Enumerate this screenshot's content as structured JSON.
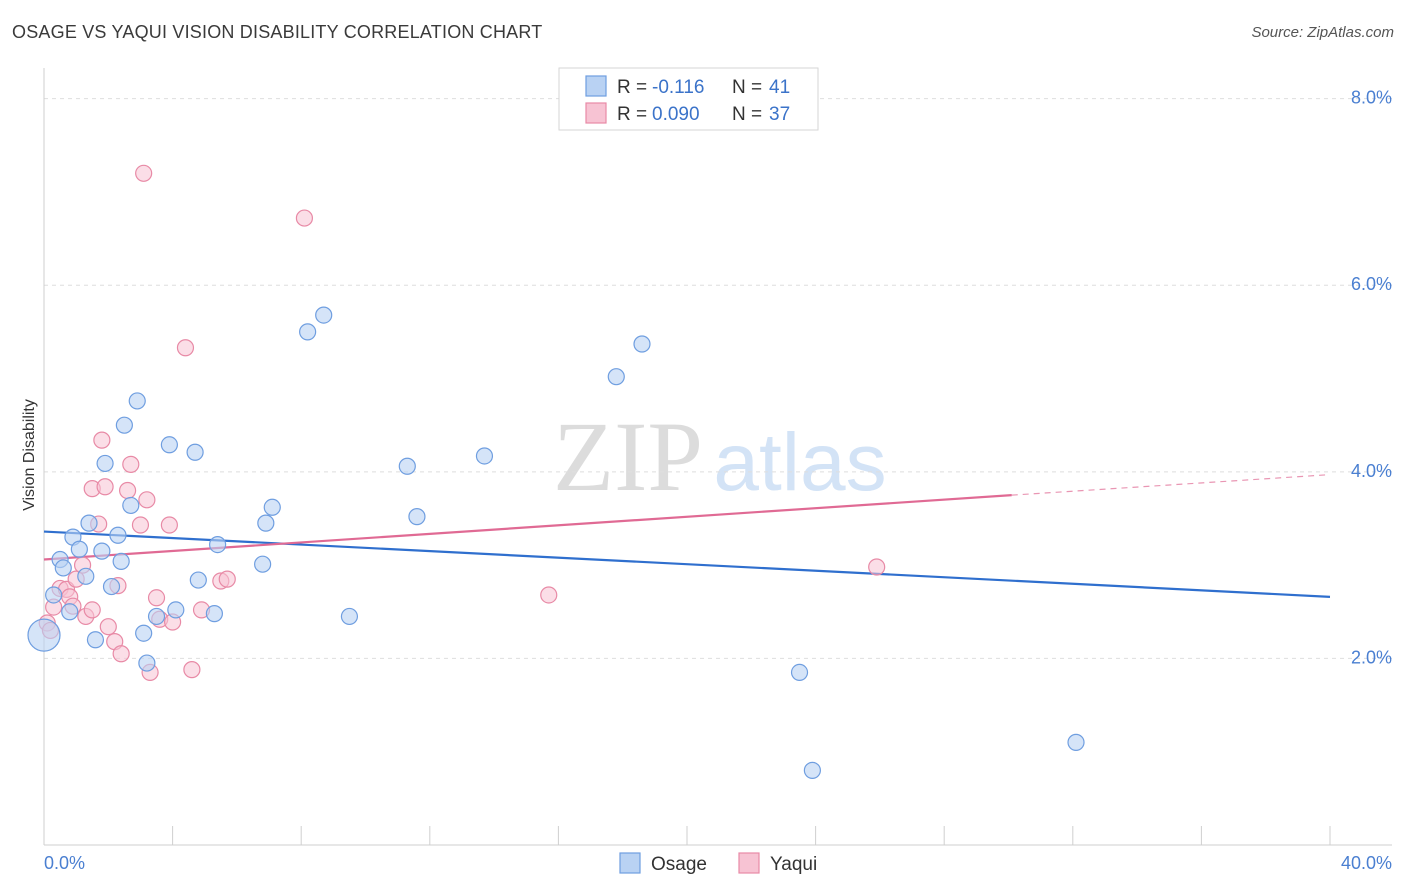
{
  "header": {
    "title": "OSAGE VS YAQUI VISION DISABILITY CORRELATION CHART",
    "source": "Source: ZipAtlas.com"
  },
  "watermark": {
    "zip": "ZIP",
    "atlas": "atlas"
  },
  "colors": {
    "osage_fill": "#b9d2f3",
    "osage_stroke": "#6f9ee0",
    "osage_line": "#2f6fce",
    "yaqui_fill": "#f7c3d3",
    "yaqui_stroke": "#e88aa6",
    "yaqui_line": "#e06a94",
    "tick": "#4a7fd1"
  },
  "chart_data": {
    "type": "scatter",
    "ylabel": "Vision Disability",
    "xlim": [
      0,
      40
    ],
    "ylim": [
      0,
      8.2
    ],
    "x_ticks": [
      "0.0%",
      "40.0%"
    ],
    "y_ticks": [
      {
        "value": 2,
        "label": "2.0%"
      },
      {
        "value": 4,
        "label": "4.0%"
      },
      {
        "value": 6,
        "label": "6.0%"
      },
      {
        "value": 8,
        "label": "8.0%"
      }
    ],
    "legend": {
      "rows": [
        {
          "r_label": "R =",
          "r_value": "-0.116",
          "n_label": "N =",
          "n_value": "41"
        },
        {
          "r_label": "R =",
          "r_value": "0.090",
          "n_label": "N =",
          "n_value": "37"
        }
      ]
    },
    "series": [
      {
        "name": "Osage",
        "trend": {
          "x0": 0,
          "y0": 3.36,
          "x1": 40,
          "y1": 2.66
        },
        "points": [
          [
            0.0,
            2.25
          ],
          [
            0.3,
            2.68
          ],
          [
            0.5,
            3.06
          ],
          [
            0.6,
            2.97
          ],
          [
            0.8,
            2.5
          ],
          [
            0.9,
            3.3
          ],
          [
            1.1,
            3.17
          ],
          [
            1.3,
            2.88
          ],
          [
            1.4,
            3.45
          ],
          [
            1.6,
            2.2
          ],
          [
            1.8,
            3.15
          ],
          [
            1.9,
            4.09
          ],
          [
            2.1,
            2.77
          ],
          [
            2.3,
            3.32
          ],
          [
            2.4,
            3.04
          ],
          [
            2.5,
            4.5
          ],
          [
            2.7,
            3.64
          ],
          [
            2.9,
            4.76
          ],
          [
            3.1,
            2.27
          ],
          [
            3.2,
            1.95
          ],
          [
            3.5,
            2.45
          ],
          [
            3.9,
            4.29
          ],
          [
            4.1,
            2.52
          ],
          [
            4.7,
            4.21
          ],
          [
            4.8,
            2.84
          ],
          [
            5.3,
            2.48
          ],
          [
            5.4,
            3.22
          ],
          [
            6.8,
            3.01
          ],
          [
            6.9,
            3.45
          ],
          [
            7.1,
            3.62
          ],
          [
            8.2,
            5.5
          ],
          [
            8.7,
            5.68
          ],
          [
            9.5,
            2.45
          ],
          [
            11.3,
            4.06
          ],
          [
            11.6,
            3.52
          ],
          [
            13.7,
            4.17
          ],
          [
            17.8,
            5.02
          ],
          [
            18.6,
            5.37
          ],
          [
            23.5,
            1.85
          ],
          [
            23.9,
            0.8
          ],
          [
            32.1,
            1.1
          ]
        ]
      },
      {
        "name": "Yaqui",
        "trend": {
          "x0": 0,
          "y0": 3.06,
          "x1": 30.1,
          "y1": 3.75,
          "dash_x1": 40,
          "dash_y1": 3.97
        },
        "points": [
          [
            0.1,
            2.38
          ],
          [
            0.3,
            2.55
          ],
          [
            0.5,
            2.75
          ],
          [
            0.7,
            2.74
          ],
          [
            0.8,
            2.66
          ],
          [
            0.9,
            2.56
          ],
          [
            1.0,
            2.85
          ],
          [
            1.2,
            3.0
          ],
          [
            1.3,
            2.45
          ],
          [
            1.5,
            2.52
          ],
          [
            1.5,
            3.82
          ],
          [
            1.7,
            3.44
          ],
          [
            1.8,
            4.34
          ],
          [
            1.9,
            3.84
          ],
          [
            2.0,
            2.34
          ],
          [
            2.2,
            2.18
          ],
          [
            2.3,
            2.78
          ],
          [
            2.4,
            2.05
          ],
          [
            2.6,
            3.8
          ],
          [
            2.7,
            4.08
          ],
          [
            3.0,
            3.43
          ],
          [
            3.1,
            7.2
          ],
          [
            3.2,
            3.7
          ],
          [
            3.3,
            1.85
          ],
          [
            3.5,
            2.65
          ],
          [
            3.6,
            2.42
          ],
          [
            3.9,
            3.43
          ],
          [
            4.0,
            2.39
          ],
          [
            4.4,
            5.33
          ],
          [
            4.6,
            1.88
          ],
          [
            4.9,
            2.52
          ],
          [
            5.5,
            2.83
          ],
          [
            5.7,
            2.85
          ],
          [
            8.1,
            6.72
          ],
          [
            15.7,
            2.68
          ],
          [
            25.9,
            2.98
          ],
          [
            0.2,
            2.3
          ]
        ]
      }
    ]
  },
  "bottom_legend": {
    "osage": "Osage",
    "yaqui": "Yaqui"
  }
}
